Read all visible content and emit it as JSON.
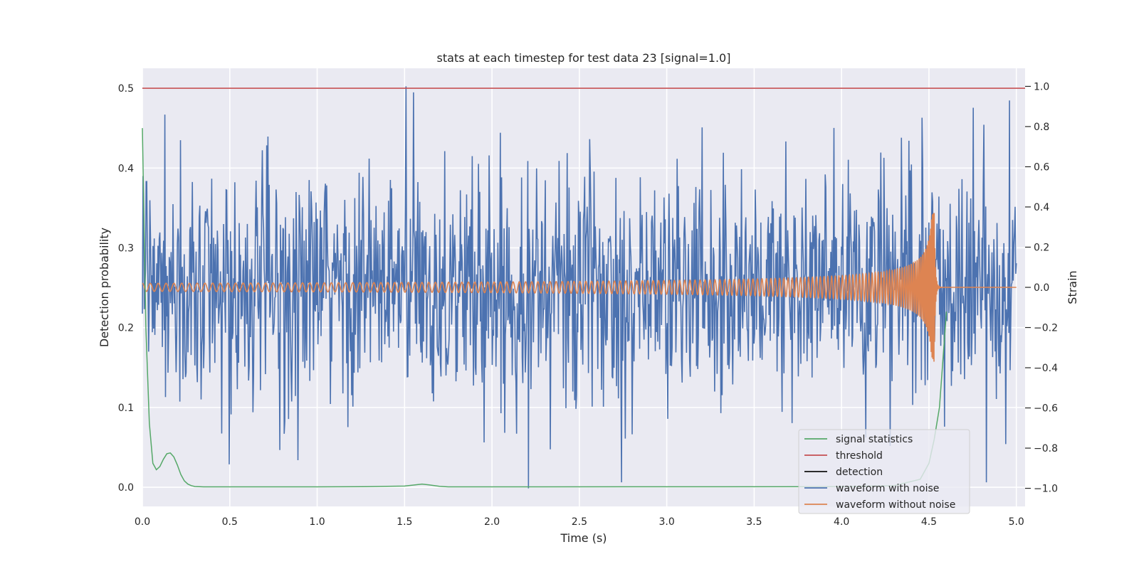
{
  "chart_data": {
    "type": "line",
    "title": "stats at each timestep for test data 23 [signal=1.0]",
    "xlabel": "Time (s)",
    "ylabel_left": "Detection probability",
    "ylabel_right": "Strain",
    "xlim": [
      0.0,
      5.05
    ],
    "ylim_left": [
      -0.024,
      0.525
    ],
    "ylim_right": [
      -1.09,
      1.09
    ],
    "x_ticks": [
      0.0,
      0.5,
      1.0,
      1.5,
      2.0,
      2.5,
      3.0,
      3.5,
      4.0,
      4.5,
      5.0
    ],
    "x_tick_labels": [
      "0.0",
      "0.5",
      "1.0",
      "1.5",
      "2.0",
      "2.5",
      "3.0",
      "3.5",
      "4.0",
      "4.5",
      "5.0"
    ],
    "y_left_ticks": [
      0.0,
      0.1,
      0.2,
      0.3,
      0.4,
      0.5
    ],
    "y_left_tick_labels": [
      "0.0",
      "0.1",
      "0.2",
      "0.3",
      "0.4",
      "0.5"
    ],
    "y_right_ticks": [
      -1.0,
      -0.8,
      -0.6,
      -0.4,
      -0.2,
      0.0,
      0.2,
      0.4,
      0.6,
      0.8,
      1.0
    ],
    "y_right_tick_labels": [
      "−1.0",
      "−0.8",
      "−0.6",
      "−0.4",
      "−0.2",
      "0.0",
      "0.2",
      "0.4",
      "0.6",
      "0.8",
      "1.0"
    ],
    "grid": true,
    "legend_position": "bottom-right",
    "series": [
      {
        "name": "signal statistics",
        "axis": "left",
        "color": "#55a868",
        "x": [
          0.0,
          0.02,
          0.04,
          0.06,
          0.08,
          0.1,
          0.12,
          0.14,
          0.16,
          0.18,
          0.2,
          0.22,
          0.24,
          0.26,
          0.28,
          0.3,
          0.35,
          0.5,
          1.0,
          1.3,
          1.5,
          1.56,
          1.6,
          1.64,
          1.7,
          1.75,
          2.0,
          3.0,
          4.0,
          4.3,
          4.45,
          4.5,
          4.53,
          4.56,
          4.58,
          4.6
        ],
        "values": [
          0.45,
          0.2,
          0.08,
          0.03,
          0.022,
          0.026,
          0.035,
          0.042,
          0.043,
          0.038,
          0.028,
          0.016,
          0.008,
          0.004,
          0.002,
          0.001,
          0.0005,
          0.0005,
          0.0005,
          0.0008,
          0.0015,
          0.003,
          0.004,
          0.003,
          0.0012,
          0.0005,
          0.0005,
          0.0006,
          0.0008,
          0.002,
          0.01,
          0.03,
          0.06,
          0.1,
          0.16,
          0.22
        ]
      },
      {
        "name": "threshold",
        "axis": "left",
        "color": "#c44e52",
        "x": [
          0.0,
          5.05
        ],
        "values": [
          0.5,
          0.5
        ]
      },
      {
        "name": "detection",
        "axis": "left",
        "color": "#111111",
        "x": [],
        "values": []
      },
      {
        "name": "waveform with noise",
        "axis": "right",
        "color": "#4c72b0",
        "x_start": 0.0,
        "x_end": 5.0,
        "samples": 1400,
        "mean": 0.0,
        "amplitude_range": [
          -1.0,
          1.0
        ],
        "notable_points": [
          {
            "x": 1.51,
            "y": 1.0
          },
          {
            "x": 2.21,
            "y": -1.0
          },
          {
            "x": 4.96,
            "y": 0.93
          },
          {
            "x": 0.89,
            "y": -0.86
          }
        ]
      },
      {
        "name": "waveform without noise",
        "axis": "right",
        "color": "#dd8452",
        "x_start": 0.0,
        "merger_time": 4.53,
        "x_end": 5.0,
        "initial_amplitude": 0.02,
        "peak_amplitude": 0.37,
        "initial_frequency_hz": 22,
        "post_merger": 0.0
      }
    ]
  }
}
